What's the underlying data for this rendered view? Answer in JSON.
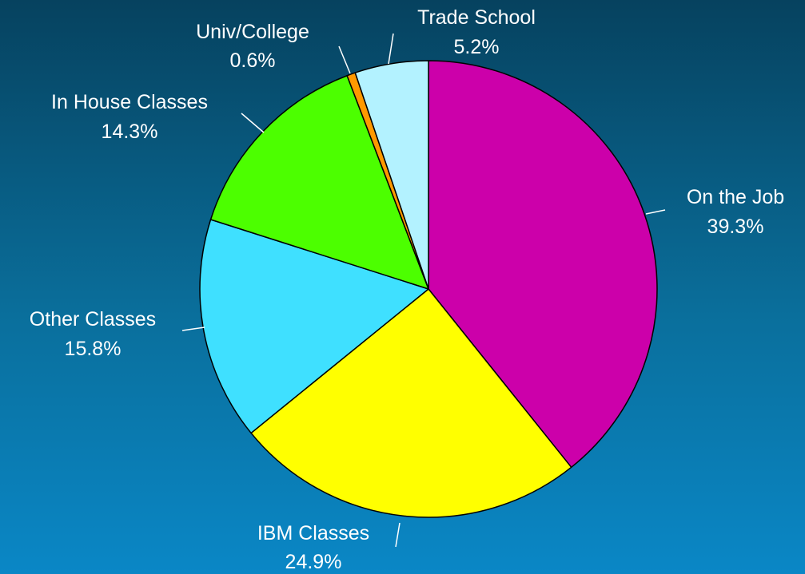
{
  "chart_data": {
    "type": "pie",
    "title": "",
    "slices": [
      {
        "label": "On the Job",
        "value": 39.3,
        "value_label": "39.3%",
        "color": "#cc00aa"
      },
      {
        "label": "IBM Classes",
        "value": 24.9,
        "value_label": "24.9%",
        "color": "#ffff00"
      },
      {
        "label": "Other Classes",
        "value": 15.8,
        "value_label": "15.8%",
        "color": "#3fe0ff"
      },
      {
        "label": "In House Classes",
        "value": 14.3,
        "value_label": "14.3%",
        "color": "#4cff00"
      },
      {
        "label": "Univ/College",
        "value": 0.6,
        "value_label": "0.6%",
        "color": "#ff9900"
      },
      {
        "label": "Trade School",
        "value": 5.2,
        "value_label": "5.2%",
        "color": "#b3f2ff"
      }
    ],
    "start_angle_deg": 0,
    "direction": "clockwise"
  }
}
